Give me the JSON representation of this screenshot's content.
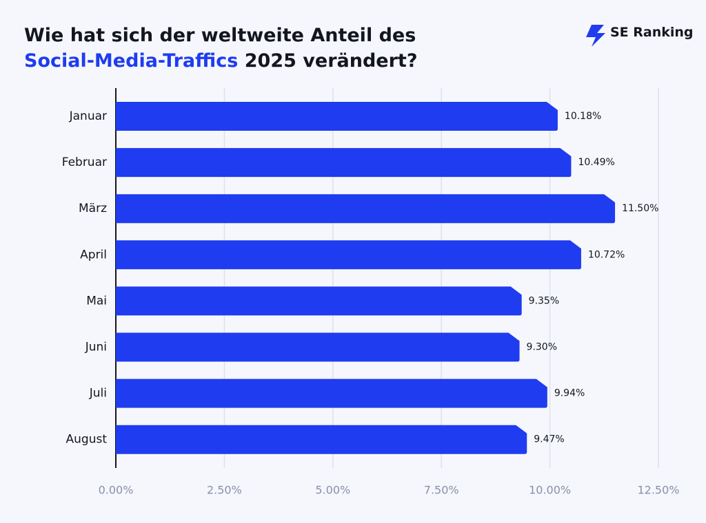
{
  "chart_data": {
    "type": "bar",
    "orientation": "horizontal",
    "title_lead": "Wie hat sich der weltweite Anteil des",
    "title_highlight": "Social-Media-Traffics",
    "title_tail": "2025 verändert?",
    "highlight_color": "#1f3cf0",
    "brand": "SE Ranking",
    "categories": [
      "Januar",
      "Februar",
      "März",
      "April",
      "Mai",
      "Juni",
      "Juli",
      "August"
    ],
    "values": [
      10.18,
      10.49,
      11.5,
      10.72,
      9.35,
      9.3,
      9.94,
      9.47
    ],
    "value_labels": [
      "10.18%",
      "10.49%",
      "11.50%",
      "10.72%",
      "9.35%",
      "9.30%",
      "9.94%",
      "9.47%"
    ],
    "color": "#1f3cf0",
    "xlim": [
      0,
      12.5
    ],
    "xticks": [
      {
        "value": 0,
        "label": "0.00%"
      },
      {
        "value": 2.5,
        "label": "2.50%"
      },
      {
        "value": 5,
        "label": "5.00%"
      },
      {
        "value": 7.5,
        "label": "7.50%"
      },
      {
        "value": 10,
        "label": "10.00%"
      },
      {
        "value": 12.5,
        "label": "12.50%"
      }
    ],
    "grid": true
  }
}
